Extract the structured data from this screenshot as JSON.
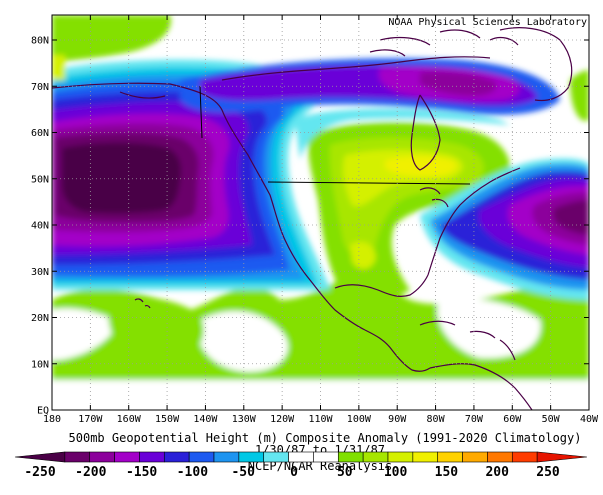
{
  "credit": "NOAA Physical Sciences Laboratory",
  "title": "500mb Geopotential Height (m) Composite Anomaly (1991-2020 Climatology)",
  "date_range": "1/30/87 to 1/31/87",
  "source": "NCEP/NCAR Reanalysis",
  "lat_labels": [
    "80N",
    "70N",
    "60N",
    "50N",
    "40N",
    "30N",
    "20N",
    "10N",
    "EQ"
  ],
  "lon_labels": [
    "180",
    "170W",
    "160W",
    "150W",
    "140W",
    "130W",
    "120W",
    "110W",
    "100W",
    "90W",
    "80W",
    "70W",
    "60W",
    "50W",
    "40W"
  ],
  "colorbar": {
    "tick_labels": [
      "-250",
      "-200",
      "-150",
      "-100",
      "-50",
      "0",
      "50",
      "100",
      "150",
      "200",
      "250"
    ],
    "colors": [
      "#4a0046",
      "#6a006a",
      "#8c009c",
      "#a300c8",
      "#6a00d8",
      "#2a20d8",
      "#1e5af0",
      "#1e94f0",
      "#00c8e6",
      "#64e6f0",
      "#ffffff",
      "#ffffff",
      "#80e000",
      "#a6e600",
      "#d4f000",
      "#f0f000",
      "#ffd200",
      "#ffaa00",
      "#ff7800",
      "#ff3c00",
      "#e61400"
    ]
  }
}
